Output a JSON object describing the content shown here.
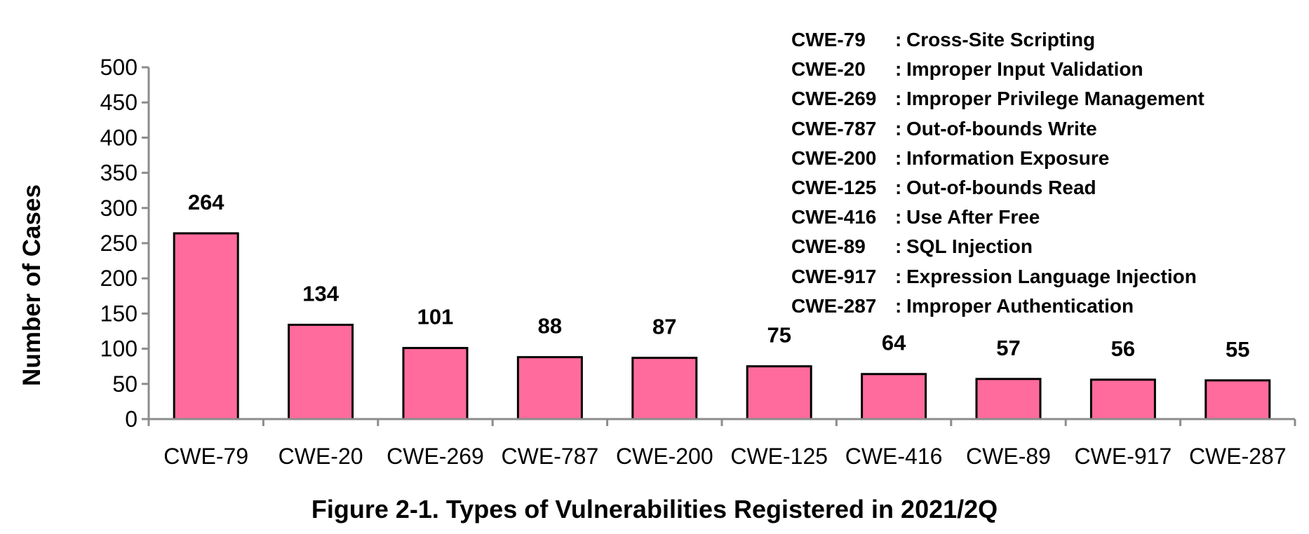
{
  "chart_data": {
    "type": "bar",
    "title": "Figure 2-1. Types of Vulnerabilities Registered in 2021/2Q",
    "xlabel": "",
    "ylabel": "Number of Cases",
    "ylim": [
      0,
      500
    ],
    "yticks": [
      0,
      50,
      100,
      150,
      200,
      250,
      300,
      350,
      400,
      450,
      500
    ],
    "categories": [
      "CWE-79",
      "CWE-20",
      "CWE-269",
      "CWE-787",
      "CWE-200",
      "CWE-125",
      "CWE-416",
      "CWE-89",
      "CWE-917",
      "CWE-287"
    ],
    "values": [
      264,
      134,
      101,
      88,
      87,
      75,
      64,
      57,
      56,
      55
    ],
    "bar_color": "#ff6b9d",
    "grid": false,
    "legend_position": "top-right",
    "legend": [
      {
        "code": "CWE-79",
        "sep": ":",
        "desc": "Cross-Site Scripting"
      },
      {
        "code": "CWE-20",
        "sep": ":",
        "desc": "Improper Input Validation"
      },
      {
        "code": "CWE-269",
        "sep": ":",
        "desc": "Improper Privilege Management"
      },
      {
        "code": "CWE-787",
        "sep": ":",
        "desc": "Out-of-bounds Write"
      },
      {
        "code": "CWE-200",
        "sep": ":",
        "desc": "Information Exposure"
      },
      {
        "code": "CWE-125",
        "sep": ":",
        "desc": "Out-of-bounds Read"
      },
      {
        "code": "CWE-416",
        "sep": ":",
        "desc": "Use After Free"
      },
      {
        "code": "CWE-89",
        "sep": ":",
        "desc": "SQL Injection"
      },
      {
        "code": "CWE-917",
        "sep": ":",
        "desc": "Expression Language Injection"
      },
      {
        "code": "CWE-287",
        "sep": ":",
        "desc": "Improper Authentication"
      }
    ]
  }
}
